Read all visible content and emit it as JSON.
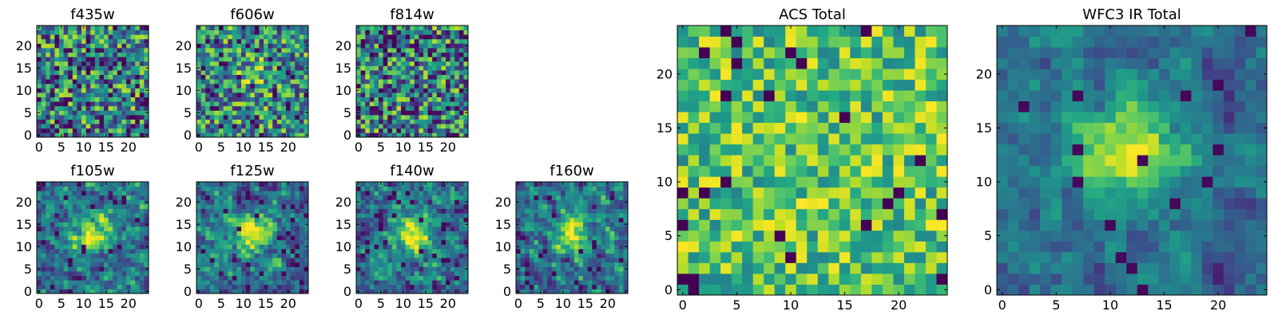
{
  "figure": {
    "description_note": "Grid of 2D pixel image panels (25x25) with viridis-like colormap"
  },
  "chart_data": [
    {
      "type": "heatmap",
      "title": "f435w",
      "grid": [
        25,
        25
      ],
      "xticks": [
        0,
        5,
        10,
        15,
        20
      ],
      "yticks": [
        0,
        5,
        10,
        15,
        20
      ],
      "xlim": [
        0,
        24
      ],
      "ylim": [
        0,
        24
      ],
      "pattern": "noise",
      "seed": 11
    },
    {
      "type": "heatmap",
      "title": "f606w",
      "grid": [
        25,
        25
      ],
      "xticks": [
        0,
        5,
        10,
        15,
        20
      ],
      "yticks": [
        0,
        5,
        10,
        15,
        20
      ],
      "xlim": [
        0,
        24
      ],
      "ylim": [
        0,
        24
      ],
      "pattern": "noise-faint-source",
      "seed": 23
    },
    {
      "type": "heatmap",
      "title": "f814w",
      "grid": [
        25,
        25
      ],
      "xticks": [
        0,
        5,
        10,
        15,
        20
      ],
      "yticks": [
        0,
        5,
        10,
        15,
        20
      ],
      "xlim": [
        0,
        24
      ],
      "ylim": [
        0,
        24
      ],
      "pattern": "noise",
      "seed": 37
    },
    {
      "type": "heatmap",
      "title": "f105w",
      "grid": [
        25,
        25
      ],
      "xticks": [
        0,
        5,
        10,
        15,
        20
      ],
      "yticks": [
        0,
        5,
        10,
        15,
        20
      ],
      "xlim": [
        0,
        24
      ],
      "ylim": [
        0,
        24
      ],
      "pattern": "source",
      "seed": 41
    },
    {
      "type": "heatmap",
      "title": "f125w",
      "grid": [
        25,
        25
      ],
      "xticks": [
        0,
        5,
        10,
        15,
        20
      ],
      "yticks": [
        0,
        5,
        10,
        15,
        20
      ],
      "xlim": [
        0,
        24
      ],
      "ylim": [
        0,
        24
      ],
      "pattern": "source",
      "seed": 53
    },
    {
      "type": "heatmap",
      "title": "f140w",
      "grid": [
        25,
        25
      ],
      "xticks": [
        0,
        5,
        10,
        15,
        20
      ],
      "yticks": [
        0,
        5,
        10,
        15,
        20
      ],
      "xlim": [
        0,
        24
      ],
      "ylim": [
        0,
        24
      ],
      "pattern": "source",
      "seed": 67
    },
    {
      "type": "heatmap",
      "title": "f160w",
      "grid": [
        25,
        25
      ],
      "xticks": [
        0,
        5,
        10,
        15,
        20
      ],
      "yticks": [
        0,
        5,
        10,
        15,
        20
      ],
      "xlim": [
        0,
        24
      ],
      "ylim": [
        0,
        24
      ],
      "pattern": "source",
      "seed": 79
    },
    {
      "type": "heatmap",
      "title": "ACS Total",
      "grid": [
        25,
        25
      ],
      "xticks": [
        0,
        5,
        10,
        15,
        20
      ],
      "yticks": [
        0,
        5,
        10,
        15,
        20
      ],
      "xlim": [
        0,
        24
      ],
      "ylim": [
        0,
        24
      ],
      "pattern": "noise-bright",
      "seed": 97
    },
    {
      "type": "heatmap",
      "title": "WFC3 IR Total",
      "grid": [
        25,
        25
      ],
      "xticks": [
        0,
        5,
        10,
        15,
        20
      ],
      "yticks": [
        0,
        5,
        10,
        15,
        20
      ],
      "xlim": [
        0,
        24
      ],
      "ylim": [
        0,
        24
      ],
      "pattern": "source-smooth",
      "seed": 131
    }
  ]
}
